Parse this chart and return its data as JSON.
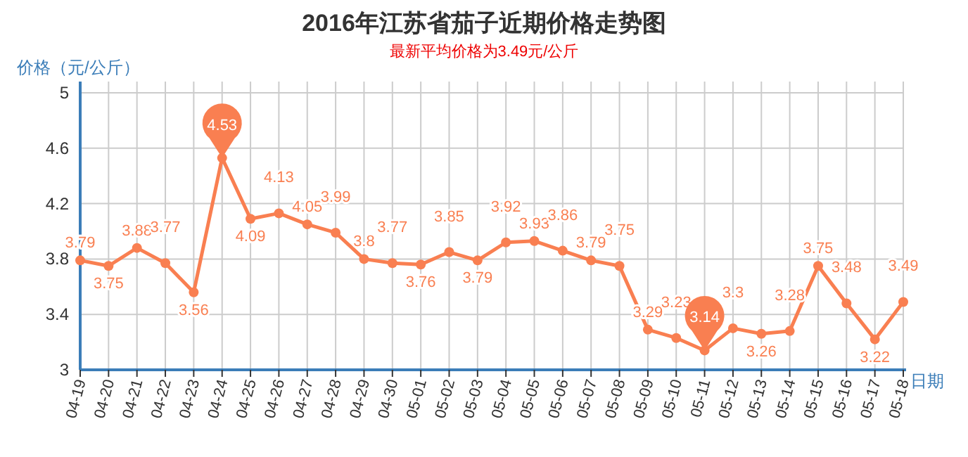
{
  "chart_data": {
    "type": "line",
    "title": "2016年江苏省茄子近期价格走势图",
    "subtitle": "最新平均价格为3.49元/公斤",
    "ylabel": "价格（元/公斤）",
    "xlabel": "日期",
    "categories": [
      "04-19",
      "04-20",
      "04-21",
      "04-22",
      "04-23",
      "04-24",
      "04-25",
      "04-26",
      "04-27",
      "04-28",
      "04-29",
      "04-30",
      "05-01",
      "05-02",
      "05-03",
      "05-04",
      "05-05",
      "05-06",
      "05-07",
      "05-08",
      "05-09",
      "05-10",
      "05-11",
      "05-12",
      "05-13",
      "05-14",
      "05-15",
      "05-16",
      "05-17",
      "05-18"
    ],
    "series": [
      {
        "color": "#f97f51",
        "values": [
          3.79,
          3.75,
          3.88,
          3.77,
          3.56,
          4.53,
          4.09,
          4.13,
          4.05,
          3.99,
          3.8,
          3.77,
          3.76,
          3.85,
          3.79,
          3.92,
          3.93,
          3.86,
          3.79,
          3.75,
          3.29,
          3.23,
          3.14,
          3.3,
          3.26,
          3.28,
          3.75,
          3.48,
          3.22,
          3.49
        ]
      }
    ],
    "ylim": [
      3,
      5
    ],
    "yticks": [
      3,
      3.4,
      3.8,
      4.2,
      4.6,
      5
    ],
    "grid": true,
    "marker": "circle",
    "data_labels": true
  }
}
